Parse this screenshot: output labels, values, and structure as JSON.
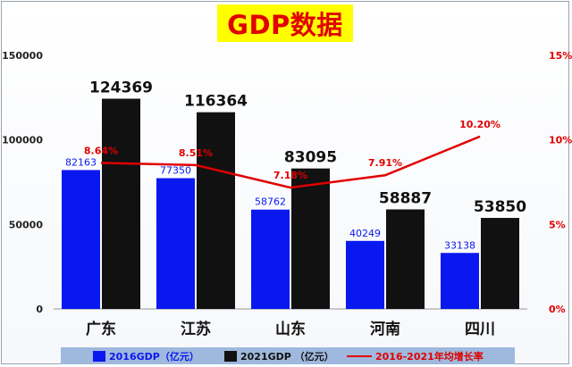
{
  "title": "GDP数据",
  "colors": {
    "series2016": "#0a18f0",
    "series2021": "#111111",
    "growth": "#e00000",
    "title_bg": "#ffff00",
    "title_text": "#e00000",
    "legend_bg": "#9fb8dd"
  },
  "chart_data": {
    "type": "bar",
    "categories": [
      "广东",
      "江苏",
      "山东",
      "河南",
      "四川"
    ],
    "series": [
      {
        "name": "2016GDP（亿元）",
        "values": [
          82163,
          77350,
          58762,
          40249,
          33138
        ]
      },
      {
        "name": "2021GDP（亿元）",
        "values": [
          124369,
          116364,
          83095,
          58887,
          53850
        ]
      }
    ],
    "line_series": {
      "name": "2016-2021年均增长率",
      "values": [
        8.64,
        8.51,
        7.18,
        7.91,
        10.2
      ],
      "labels": [
        "8.64%",
        "8.51%",
        "7.18%",
        "7.91%",
        "10.20%"
      ],
      "axis": "right"
    },
    "left_axis": {
      "ylim": [
        0,
        150000
      ],
      "ticks": [
        "0",
        "50000",
        "100000",
        "150000"
      ]
    },
    "right_axis": {
      "ylim": [
        0,
        15
      ],
      "ticks": [
        "0%",
        "5%",
        "10%",
        "15%"
      ]
    },
    "grid": false,
    "legend_position": "bottom"
  },
  "legend": [
    {
      "label": "2016GDP（亿元）",
      "kind": "swatch",
      "color": "#0a18f0"
    },
    {
      "label": "2021GDP （亿元）",
      "kind": "swatch",
      "color": "#111111"
    },
    {
      "label": "2016-2021年均增长率",
      "kind": "line",
      "color": "#e00000"
    }
  ]
}
